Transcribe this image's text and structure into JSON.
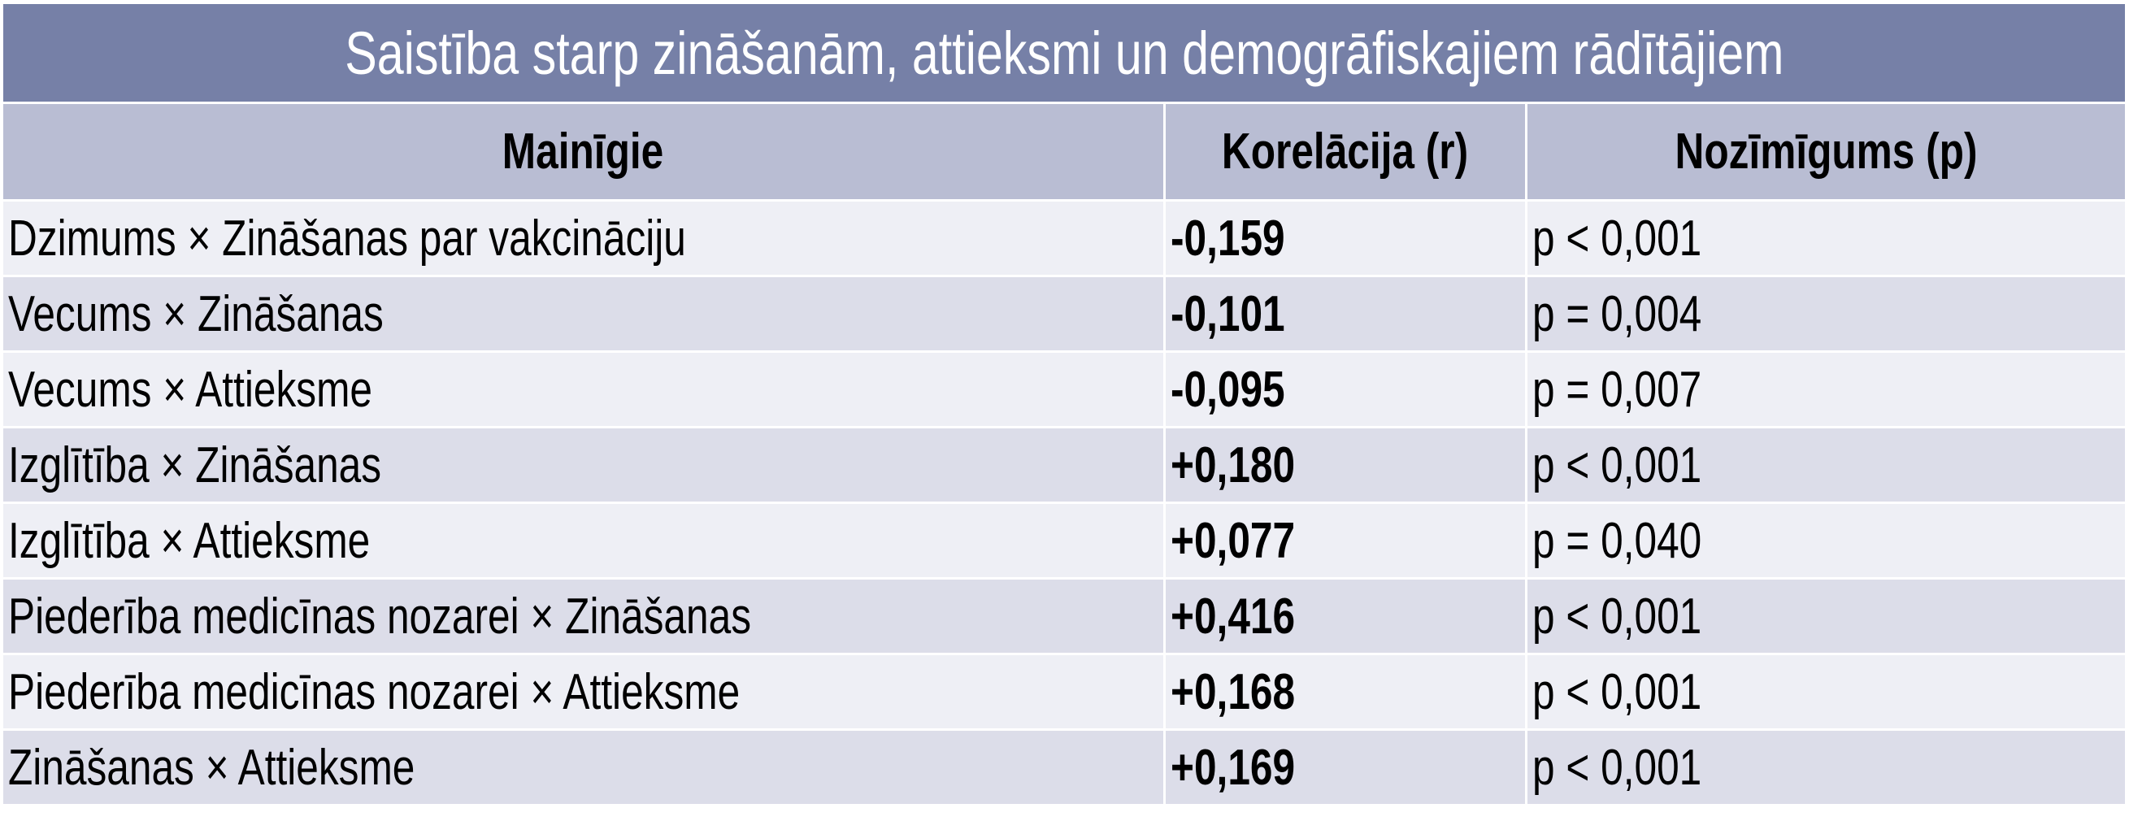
{
  "title": "Saistība starp zināšanām, attieksmi un demogrāfiskajiem rādītājiem",
  "table": {
    "header": [
      "Mainīgie",
      "Korelācija (r)",
      "Nozīmīgums (p)"
    ],
    "rows": [
      [
        "Dzimums × Zināšanas par vakcināciju",
        "-0,159",
        "p < 0,001"
      ],
      [
        "Vecums × Zināšanas",
        "-0,101",
        "p = 0,004"
      ],
      [
        "Vecums × Attieksme",
        "-0,095",
        "p = 0,007"
      ],
      [
        "Izglītība × Zināšanas",
        "+0,180",
        "p < 0,001"
      ],
      [
        "Izglītība × Attieksme",
        "+0,077",
        "p = 0,040"
      ],
      [
        "Piederība medicīnas nozarei × Zināšanas",
        "+0,416",
        "p < 0,001"
      ],
      [
        "Piederība medicīnas nozarei × Attieksme",
        "+0,168",
        "p < 0,001"
      ],
      [
        "Zināšanas × Attieksme",
        "+0,169",
        "p < 0,001"
      ]
    ]
  }
}
